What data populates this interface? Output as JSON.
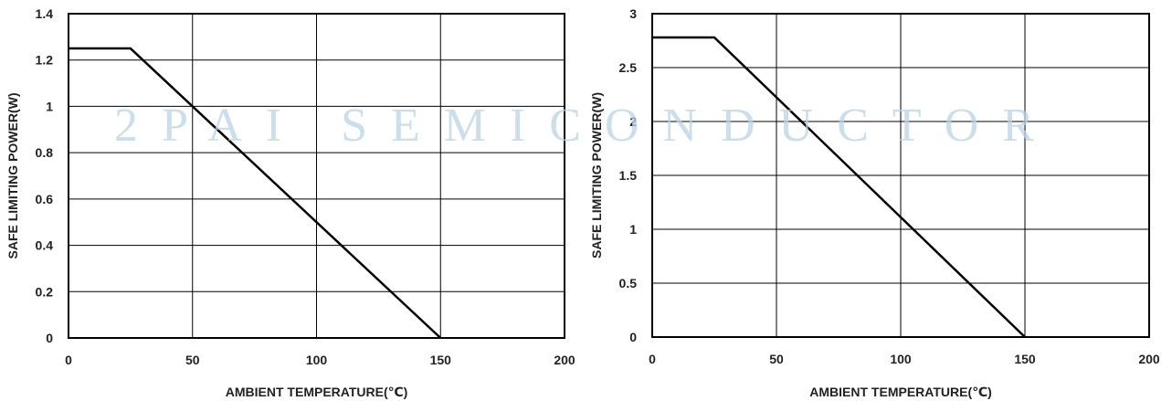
{
  "watermark": "2PAI SEMICONDUCTOR",
  "chart_data": [
    {
      "type": "line",
      "title": "",
      "xlabel": "AMBIENT TEMPERATURE(℃)",
      "ylabel": "SAFE LIMITING POWER(W)",
      "xlim": [
        0,
        200
      ],
      "ylim": [
        0,
        1.4
      ],
      "x_ticks": [
        0,
        50,
        100,
        150,
        200
      ],
      "y_ticks": [
        0,
        0.2,
        0.4,
        0.6,
        0.8,
        1,
        1.2,
        1.4
      ],
      "x_tick_labels": [
        "0",
        "50",
        "100",
        "150",
        "200"
      ],
      "y_tick_labels": [
        "0",
        "0.2",
        "0.4",
        "0.6",
        "0.8",
        "1",
        "1.2",
        "1.4"
      ],
      "grid": true,
      "series": [
        {
          "x": [
            0,
            25,
            150
          ],
          "y": [
            1.25,
            1.25,
            0
          ]
        }
      ]
    },
    {
      "type": "line",
      "title": "",
      "xlabel": "AMBIENT TEMPERATURE(℃)",
      "ylabel": "SAFE LIMITING POWER(W)",
      "xlim": [
        0,
        200
      ],
      "ylim": [
        0,
        3
      ],
      "x_ticks": [
        0,
        50,
        100,
        150,
        200
      ],
      "y_ticks": [
        0,
        0.5,
        1,
        1.5,
        2,
        2.5,
        3
      ],
      "x_tick_labels": [
        "0",
        "50",
        "100",
        "150",
        "200"
      ],
      "y_tick_labels": [
        "0",
        "0.5",
        "1",
        "1.5",
        "2",
        "2.5",
        "3"
      ],
      "grid": true,
      "series": [
        {
          "x": [
            0,
            25,
            150
          ],
          "y": [
            2.78,
            2.78,
            0
          ]
        }
      ]
    }
  ]
}
